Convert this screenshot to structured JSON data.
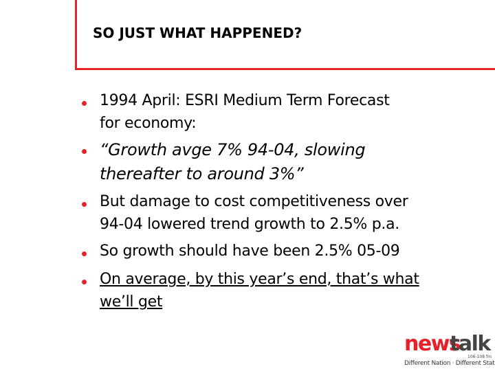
{
  "title": "SO JUST WHAT HAPPENED?",
  "bullets": [
    {
      "lines": [
        "1994 April: ESRI Medium Term Forecast",
        "for economy:"
      ]
    },
    {
      "lines": [
        "“Growth avge 7% 94-04, slowing",
        "thereafter to around 3%”"
      ]
    },
    {
      "lines": [
        "But damage to cost competitiveness over",
        "94-04 lowered trend growth to 2.5% p.a."
      ]
    },
    {
      "lines": [
        "So growth should have been 2.5% 05-09"
      ]
    },
    {
      "lines": [
        "On average, by this year’s end, that’s what",
        "we’ll get"
      ]
    }
  ],
  "logo": {
    "news": "news",
    "talk": "talk",
    "frequency": "106-108 fm",
    "tagline": "Different Nation · Different Station"
  }
}
